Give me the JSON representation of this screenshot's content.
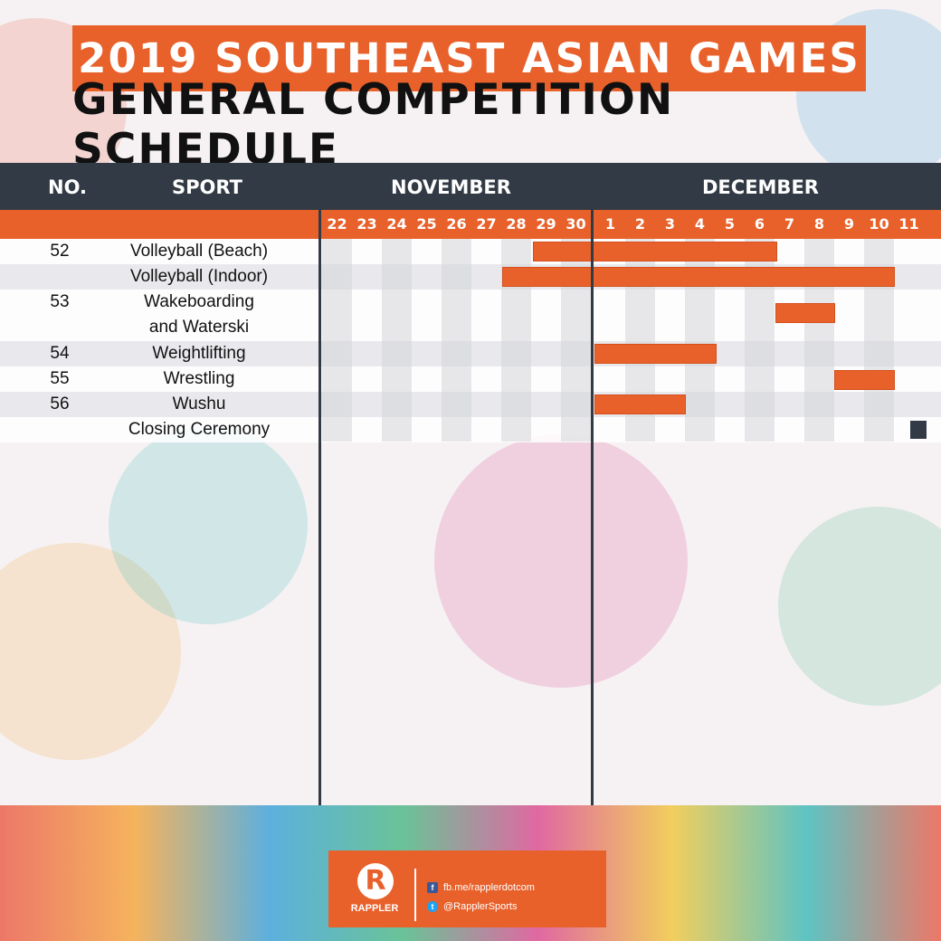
{
  "title": "2019 SOUTHEAST ASIAN GAMES",
  "subtitle": "GENERAL COMPETITION SCHEDULE",
  "headers": {
    "no": "NO.",
    "sport": "SPORT",
    "november": "NOVEMBER",
    "december": "DECEMBER"
  },
  "days": [
    "22",
    "23",
    "24",
    "25",
    "26",
    "27",
    "28",
    "29",
    "30",
    "1",
    "2",
    "3",
    "4",
    "5",
    "6",
    "7",
    "8",
    "9",
    "10",
    "11"
  ],
  "rows": [
    {
      "no": "52",
      "sport": "Volleyball (Beach)"
    },
    {
      "no": "",
      "sport": "Volleyball (Indoor)"
    },
    {
      "no": "53",
      "sport": "Wakeboarding"
    },
    {
      "no": "",
      "sport": "and Waterski"
    },
    {
      "no": "54",
      "sport": "Weightlifting"
    },
    {
      "no": "55",
      "sport": "Wrestling"
    },
    {
      "no": "56",
      "sport": "Wushu"
    },
    {
      "no": "",
      "sport": "Closing Ceremony"
    }
  ],
  "footer": {
    "brand": "RAPPLER",
    "facebook": "fb.me/rapplerdotcom",
    "twitter": "@RapplerSports"
  },
  "colors": {
    "accent": "#e8612b",
    "dark": "#323a45"
  }
}
